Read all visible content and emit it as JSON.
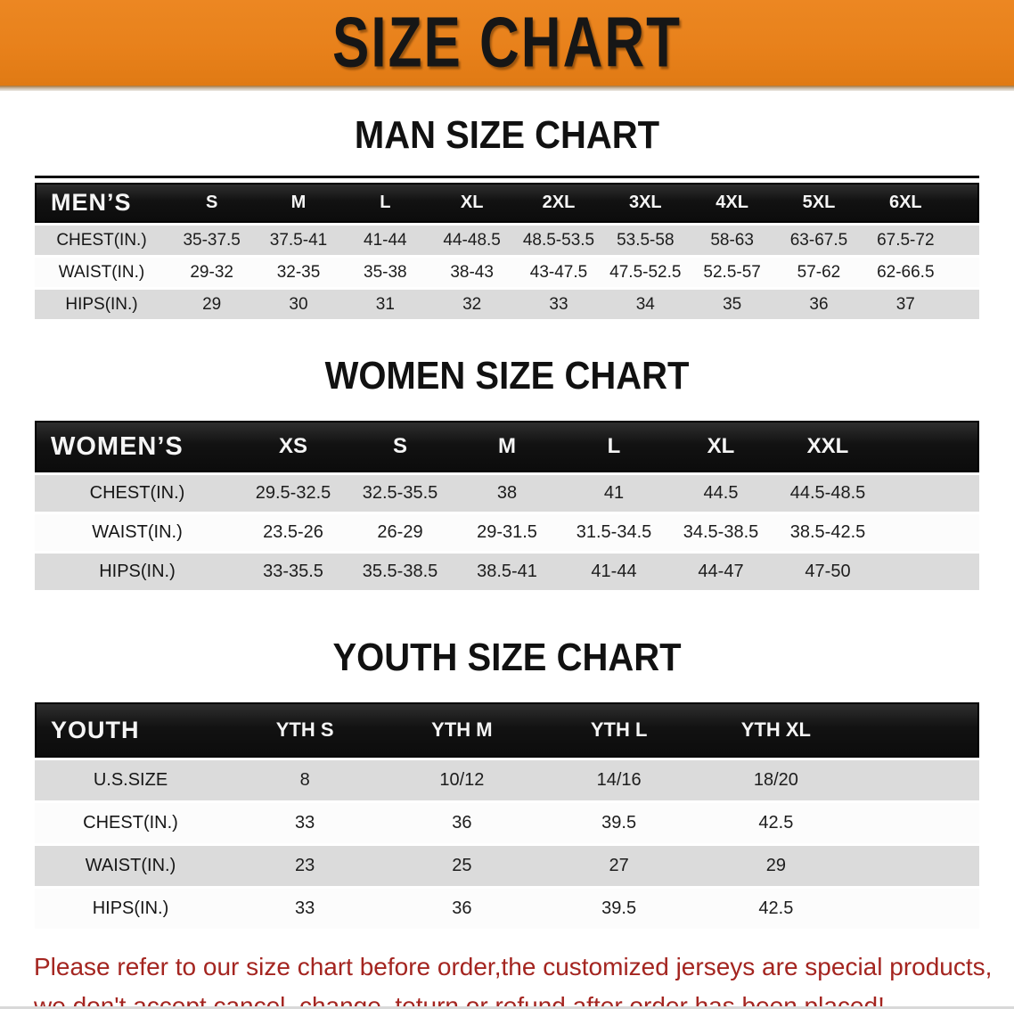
{
  "banner": {
    "title": "SIZE CHART",
    "bg_color": "#E8811B",
    "text_color": "#161616"
  },
  "sections": {
    "men": {
      "heading": "MAN SIZE CHART",
      "table": {
        "label": "MEN’S",
        "columns": [
          "S",
          "M",
          "L",
          "XL",
          "2XL",
          "3XL",
          "4XL",
          "5XL",
          "6XL"
        ],
        "rows": [
          {
            "label": "CHEST(IN.)",
            "values": [
              "35-37.5",
              "37.5-41",
              "41-44",
              "44-48.5",
              "48.5-53.5",
              "53.5-58",
              "58-63",
              "63-67.5",
              "67.5-72"
            ]
          },
          {
            "label": "WAIST(IN.)",
            "values": [
              "29-32",
              "32-35",
              "35-38",
              "38-43",
              "43-47.5",
              "47.5-52.5",
              "52.5-57",
              "57-62",
              "62-66.5"
            ]
          },
          {
            "label": "HIPS(IN.)",
            "values": [
              "29",
              "30",
              "31",
              "32",
              "33",
              "34",
              "35",
              "36",
              "37"
            ]
          }
        ]
      }
    },
    "women": {
      "heading": "WOMEN SIZE CHART",
      "table": {
        "label": "WOMEN’S",
        "columns": [
          "XS",
          "S",
          "M",
          "L",
          "XL",
          "XXL"
        ],
        "rows": [
          {
            "label": "CHEST(IN.)",
            "values": [
              "29.5-32.5",
              "32.5-35.5",
              "38",
              "41",
              "44.5",
              "44.5-48.5"
            ]
          },
          {
            "label": "WAIST(IN.)",
            "values": [
              "23.5-26",
              "26-29",
              "29-31.5",
              "31.5-34.5",
              "34.5-38.5",
              "38.5-42.5"
            ]
          },
          {
            "label": "HIPS(IN.)",
            "values": [
              "33-35.5",
              "35.5-38.5",
              "38.5-41",
              "41-44",
              "44-47",
              "47-50"
            ]
          }
        ]
      }
    },
    "youth": {
      "heading": "YOUTH SIZE CHART",
      "table": {
        "label": "YOUTH",
        "columns": [
          "YTH S",
          "YTH M",
          "YTH L",
          "YTH XL"
        ],
        "rows": [
          {
            "label": "U.S.SIZE",
            "values": [
              "8",
              "10/12",
              "14/16",
              "18/20"
            ]
          },
          {
            "label": "CHEST(IN.)",
            "values": [
              "33",
              "36",
              "39.5",
              "42.5"
            ]
          },
          {
            "label": "WAIST(IN.)",
            "values": [
              "23",
              "25",
              "27",
              "29"
            ]
          },
          {
            "label": "HIPS(IN.)",
            "values": [
              "33",
              "36",
              "39.5",
              "42.5"
            ]
          }
        ]
      }
    }
  },
  "disclaimer": {
    "line1": "Please refer to our size chart before order,the customized jerseys are special products,",
    "line2": "we don't accept cancel, change, teturn or refund after order has been placed!",
    "text_color": "#A42520"
  },
  "colors": {
    "banner_orange": "#E8811B",
    "header_black": "#121212",
    "row_gray": "#DBDBDB",
    "row_white": "#FCFCFC",
    "disclaimer_red": "#A42520"
  }
}
